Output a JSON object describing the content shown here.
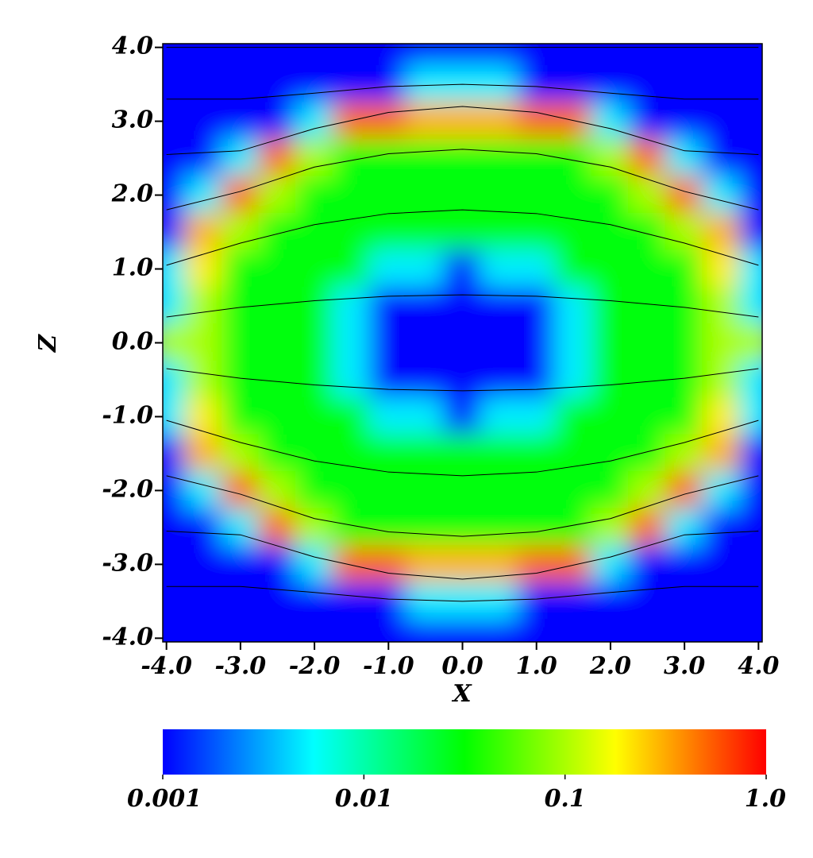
{
  "chart_data": {
    "type": "heatmap",
    "x_label": "X",
    "y_label": "Z",
    "x": [
      -4,
      -3.5,
      -3,
      -2.5,
      -2,
      -1.5,
      -1,
      -0.5,
      0,
      0.5,
      1,
      1.5,
      2,
      2.5,
      3,
      3.5,
      4
    ],
    "y": [
      4,
      3.5,
      3,
      2.5,
      2,
      1.5,
      1,
      0.5,
      0,
      -0.5,
      -1,
      -1.5,
      -2,
      -2.5,
      -3,
      -3.5,
      -4
    ],
    "values": [
      [
        0.001,
        0.001,
        0.001,
        0.001,
        0.001,
        0.001,
        0.001,
        0.001,
        0.001,
        0.001,
        0.001,
        0.001,
        0.001,
        0.001,
        0.001,
        0.001,
        0.001
      ],
      [
        0.001,
        0.001,
        0.001,
        0.001,
        0.001,
        0.001,
        0.001,
        0.005,
        0.005,
        0.005,
        0.001,
        0.001,
        0.001,
        0.001,
        0.001,
        0.001,
        0.001
      ],
      [
        0.001,
        0.001,
        0.001,
        0.001,
        0.005,
        0.5,
        0.5,
        0.3,
        0.3,
        0.3,
        0.5,
        0.5,
        0.005,
        0.001,
        0.001,
        0.001,
        0.001
      ],
      [
        0.001,
        0.001,
        0.005,
        0.5,
        0.1,
        0.03,
        0.03,
        0.03,
        0.03,
        0.03,
        0.03,
        0.03,
        0.1,
        0.5,
        0.005,
        0.001,
        0.001
      ],
      [
        0.001,
        0.005,
        0.5,
        0.1,
        0.03,
        0.03,
        0.03,
        0.03,
        0.03,
        0.03,
        0.03,
        0.03,
        0.03,
        0.1,
        0.5,
        0.005,
        0.001
      ],
      [
        0.001,
        0.3,
        0.1,
        0.03,
        0.03,
        0.03,
        0.03,
        0.03,
        0.03,
        0.03,
        0.03,
        0.03,
        0.03,
        0.03,
        0.1,
        0.3,
        0.001
      ],
      [
        0.005,
        0.2,
        0.03,
        0.03,
        0.03,
        0.03,
        0.005,
        0.005,
        0.001,
        0.005,
        0.005,
        0.03,
        0.03,
        0.03,
        0.03,
        0.2,
        0.005
      ],
      [
        0.005,
        0.1,
        0.03,
        0.03,
        0.03,
        0.005,
        0.001,
        0.001,
        0.001,
        0.001,
        0.001,
        0.005,
        0.03,
        0.03,
        0.03,
        0.1,
        0.005
      ],
      [
        0.1,
        0.1,
        0.03,
        0.03,
        0.03,
        0.005,
        0.001,
        0.001,
        0.001,
        0.001,
        0.001,
        0.005,
        0.03,
        0.03,
        0.03,
        0.1,
        0.1
      ],
      [
        0.005,
        0.1,
        0.03,
        0.03,
        0.03,
        0.005,
        0.001,
        0.001,
        0.001,
        0.001,
        0.001,
        0.005,
        0.03,
        0.03,
        0.03,
        0.1,
        0.005
      ],
      [
        0.005,
        0.2,
        0.03,
        0.03,
        0.03,
        0.03,
        0.005,
        0.005,
        0.001,
        0.005,
        0.005,
        0.03,
        0.03,
        0.03,
        0.03,
        0.2,
        0.005
      ],
      [
        0.001,
        0.3,
        0.1,
        0.03,
        0.03,
        0.03,
        0.03,
        0.03,
        0.03,
        0.03,
        0.03,
        0.03,
        0.03,
        0.03,
        0.1,
        0.3,
        0.001
      ],
      [
        0.001,
        0.005,
        0.5,
        0.1,
        0.03,
        0.03,
        0.03,
        0.03,
        0.03,
        0.03,
        0.03,
        0.03,
        0.03,
        0.1,
        0.5,
        0.005,
        0.001
      ],
      [
        0.001,
        0.001,
        0.005,
        0.5,
        0.1,
        0.03,
        0.03,
        0.03,
        0.03,
        0.03,
        0.03,
        0.03,
        0.1,
        0.5,
        0.005,
        0.001,
        0.001
      ],
      [
        0.001,
        0.001,
        0.001,
        0.001,
        0.005,
        0.5,
        0.5,
        0.3,
        0.3,
        0.3,
        0.5,
        0.5,
        0.005,
        0.001,
        0.001,
        0.001,
        0.001
      ],
      [
        0.001,
        0.001,
        0.001,
        0.001,
        0.001,
        0.001,
        0.001,
        0.005,
        0.005,
        0.005,
        0.001,
        0.001,
        0.001,
        0.001,
        0.001,
        0.001,
        0.001
      ],
      [
        0.001,
        0.001,
        0.001,
        0.001,
        0.001,
        0.001,
        0.001,
        0.001,
        0.001,
        0.001,
        0.001,
        0.001,
        0.001,
        0.001,
        0.001,
        0.001,
        0.001
      ]
    ],
    "xlim": [
      -4.05,
      4.05
    ],
    "ylim": [
      -4.05,
      4.05
    ],
    "xticks": [
      {
        "value": -4,
        "label": "-4.0"
      },
      {
        "value": -3,
        "label": "-3.0"
      },
      {
        "value": -2,
        "label": "-2.0"
      },
      {
        "value": -1,
        "label": "-1.0"
      },
      {
        "value": 0,
        "label": "0.0"
      },
      {
        "value": 1,
        "label": "1.0"
      },
      {
        "value": 2,
        "label": "2.0"
      },
      {
        "value": 3,
        "label": "3.0"
      },
      {
        "value": 4,
        "label": "4.0"
      }
    ],
    "yticks": [
      {
        "value": -4,
        "label": "-4.0"
      },
      {
        "value": -3,
        "label": "-3.0"
      },
      {
        "value": -2,
        "label": "-2.0"
      },
      {
        "value": -1,
        "label": "-1.0"
      },
      {
        "value": 0,
        "label": "0.0"
      },
      {
        "value": 1,
        "label": "1.0"
      },
      {
        "value": 2,
        "label": "2.0"
      },
      {
        "value": 3,
        "label": "3.0"
      },
      {
        "value": 4,
        "label": "4.0"
      }
    ],
    "colorbar": {
      "scale": "log",
      "lim": [
        0.001,
        1
      ],
      "ticks": [
        0.001,
        0.01,
        0.1,
        {
          "value": 1,
          "label": "1.0"
        }
      ],
      "colors": [
        "#0000ff",
        "#00ffff",
        "#00ff00",
        "#ffff00",
        "#ff0000"
      ]
    },
    "field_lines": {
      "color": "#000000",
      "x": [
        -4,
        -3,
        -2,
        -1,
        0,
        1,
        2,
        3,
        4
      ],
      "lines": [
        [
          4,
          4,
          4,
          4,
          4,
          4,
          4,
          4,
          4
        ],
        [
          3.3,
          3.3,
          3.38,
          3.47,
          3.5,
          3.47,
          3.38,
          3.3,
          3.3
        ],
        [
          2.55,
          2.6,
          2.9,
          3.12,
          3.2,
          3.12,
          2.9,
          2.6,
          2.55
        ],
        [
          1.8,
          2.05,
          2.38,
          2.56,
          2.62,
          2.56,
          2.38,
          2.05,
          1.8
        ],
        [
          1.05,
          1.35,
          1.6,
          1.75,
          1.8,
          1.75,
          1.6,
          1.35,
          1.05
        ],
        [
          0.35,
          0.48,
          0.57,
          0.63,
          0.65,
          0.63,
          0.57,
          0.48,
          0.35
        ],
        [
          -0.35,
          -0.48,
          -0.57,
          -0.63,
          -0.65,
          -0.63,
          -0.57,
          -0.48,
          -0.35
        ],
        [
          -1.05,
          -1.35,
          -1.6,
          -1.75,
          -1.8,
          -1.75,
          -1.6,
          -1.35,
          -1.05
        ],
        [
          -1.8,
          -2.05,
          -2.38,
          -2.56,
          -2.62,
          -2.56,
          -2.38,
          -2.05,
          -1.8
        ],
        [
          -2.55,
          -2.6,
          -2.9,
          -3.12,
          -3.2,
          -3.12,
          -2.9,
          -2.6,
          -2.55
        ],
        [
          -3.3,
          -3.3,
          -3.38,
          -3.47,
          -3.5,
          -3.47,
          -3.38,
          -3.3,
          -3.3
        ]
      ]
    }
  }
}
